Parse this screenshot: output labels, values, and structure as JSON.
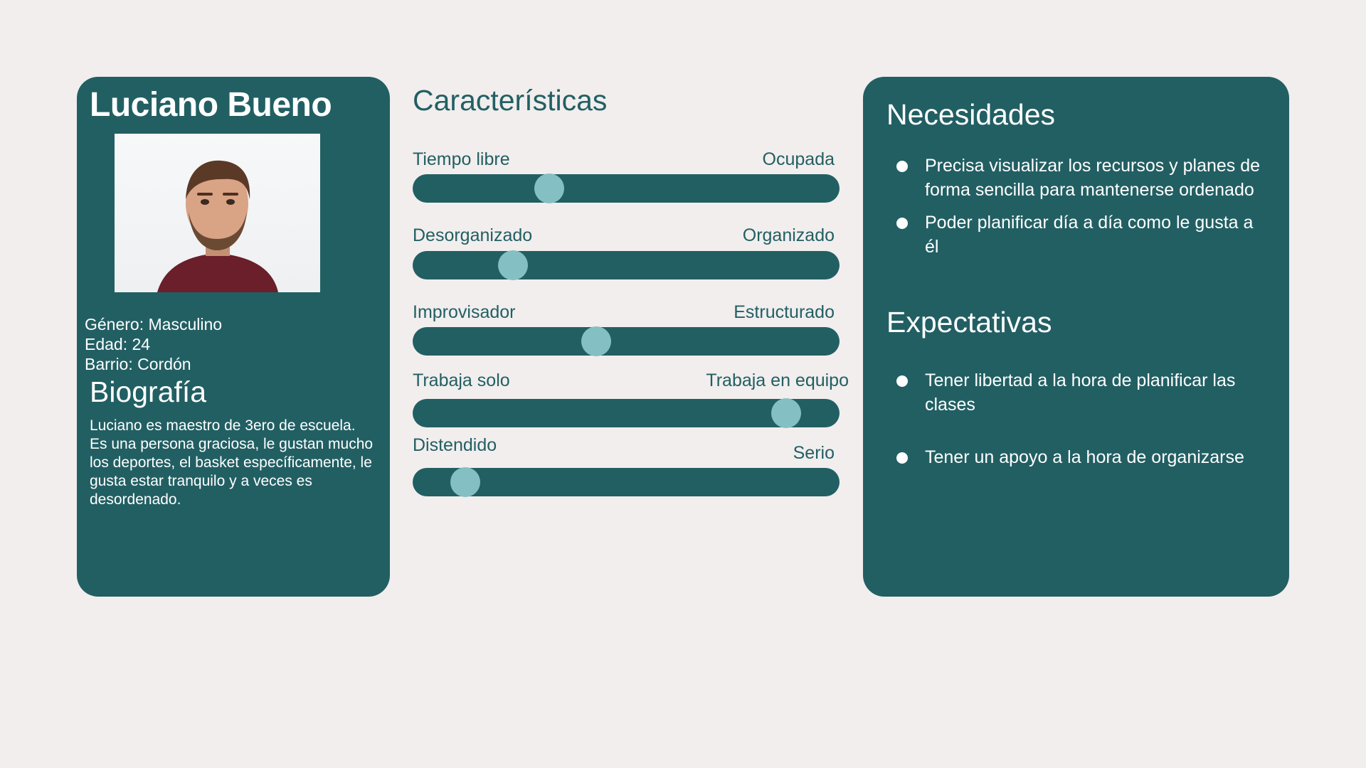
{
  "profile": {
    "name": "Luciano Bueno",
    "photo_icon": "portrait-photo",
    "gender": "Género: Masculino",
    "age": "Edad: 24",
    "neighborhood": "Barrio: Cordón",
    "bio_title": "Biografía",
    "bio_text": "Luciano es maestro de 3ero de escuela. Es una persona graciosa, le gustan mucho los deportes, el basket específicamente, le gusta estar tranquilo y a veces es desordenado."
  },
  "characteristics": {
    "title": "Características",
    "sliders": [
      {
        "left": "Tiempo libre",
        "right": "Ocupada",
        "value": 0.32
      },
      {
        "left": "Desorganizado",
        "right": "Organizado",
        "value": 0.235
      },
      {
        "left": "Improvisador",
        "right": "Estructurado",
        "value": 0.43
      },
      {
        "left": "Trabaja solo",
        "right": "Trabaja en equipo",
        "value": 0.875
      },
      {
        "left": "Distendido",
        "right": "Serio",
        "value": 0.123
      }
    ]
  },
  "needs": {
    "title": "Necesidades",
    "items": [
      "Precisa visualizar los recursos y planes de forma sencilla para mantenerse ordenado",
      "Poder planificar día a día como le gusta a él"
    ]
  },
  "expectations": {
    "title": "Expectativas",
    "items": [
      "Tener libertad a la hora de planificar las clases",
      "Tener un apoyo a la hora de organizarse"
    ]
  },
  "colors": {
    "background": "#f1eeed",
    "primary": "#225f63",
    "thumb": "#84c0c3",
    "text_light": "#ffffff"
  }
}
